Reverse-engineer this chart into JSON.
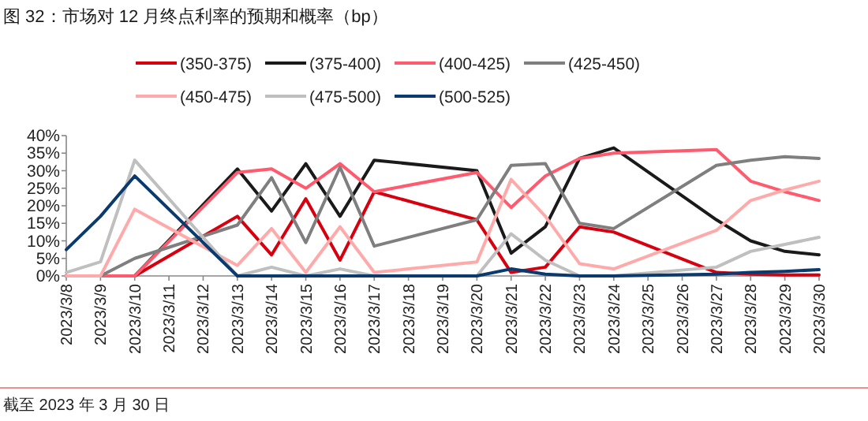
{
  "chart_data": {
    "type": "line",
    "title": "图 32：市场对 12 月终点利率的预期和概率（bp）",
    "annotations": [
      "截至 2023 年 3 月 30 日"
    ],
    "x": [
      "2023-03-08",
      "2023-03-09",
      "2023-03-10",
      "2023-03-13",
      "2023-03-14",
      "2023-03-15",
      "2023-03-16",
      "2023-03-17",
      "2023-03-20",
      "2023-03-21",
      "2023-03-22",
      "2023-03-23",
      "2023-03-24",
      "2023-03-27",
      "2023-03-28",
      "2023-03-29",
      "2023-03-30"
    ],
    "series": [
      {
        "name": "(350-375)",
        "color": "#d7000f",
        "values": [
          0,
          0,
          0,
          17,
          6,
          22,
          4.5,
          24,
          16,
          1,
          2.5,
          14,
          12.5,
          1,
          0.5,
          0.3,
          0.3
        ]
      },
      {
        "name": "(375-400)",
        "color": "#1a1a1a",
        "values": [
          0,
          0,
          0,
          30.5,
          18.5,
          32,
          17,
          33,
          30,
          6.5,
          14,
          33.5,
          36.5,
          16,
          10,
          7,
          6
        ]
      },
      {
        "name": "(400-425)",
        "color": "#ff5a6e",
        "values": [
          0,
          0,
          0,
          29.5,
          30.5,
          25,
          32,
          24,
          29.5,
          19.5,
          28.5,
          33.5,
          35,
          36,
          27,
          24,
          21.5
        ]
      },
      {
        "name": "(425-450)",
        "color": "#7f7f7f",
        "values": [
          0,
          0,
          5,
          14.5,
          28,
          9.5,
          31,
          8.5,
          16,
          31.5,
          32,
          15,
          13.5,
          31.5,
          33,
          34,
          33.5
        ]
      },
      {
        "name": "(450-475)",
        "color": "#ffaaaa",
        "values": [
          0,
          0,
          19,
          3,
          13.5,
          1,
          14,
          1,
          4,
          27.5,
          17,
          3.5,
          2,
          13,
          21.5,
          24.5,
          27
        ]
      },
      {
        "name": "(475-500)",
        "color": "#bfbfbf",
        "values": [
          1,
          4,
          33,
          0,
          2.5,
          0,
          2,
          0,
          0,
          12,
          4.5,
          0,
          0,
          2.5,
          7,
          9,
          11
        ]
      },
      {
        "name": "(500-525)",
        "color": "#0b3a6e",
        "values": [
          7.5,
          17,
          28.5,
          0,
          0,
          0,
          0,
          0,
          0,
          2,
          0.5,
          0,
          0,
          0.5,
          1,
          1.3,
          1.8
        ]
      }
    ],
    "xlim": [
      "2023-03-08",
      "2023-03-30"
    ],
    "xticks": [
      {
        "value": "2023-03-08",
        "label": "2023/3/8"
      },
      {
        "value": "2023-03-09",
        "label": "2023/3/9"
      },
      {
        "value": "2023-03-10",
        "label": "2023/3/10"
      },
      {
        "value": "2023-03-11",
        "label": "2023/3/11"
      },
      {
        "value": "2023-03-12",
        "label": "2023/3/12"
      },
      {
        "value": "2023-03-13",
        "label": "2023/3/13"
      },
      {
        "value": "2023-03-14",
        "label": "2023/3/14"
      },
      {
        "value": "2023-03-15",
        "label": "2023/3/15"
      },
      {
        "value": "2023-03-16",
        "label": "2023/3/16"
      },
      {
        "value": "2023-03-17",
        "label": "2023/3/17"
      },
      {
        "value": "2023-03-18",
        "label": "2023/3/18"
      },
      {
        "value": "2023-03-19",
        "label": "2023/3/19"
      },
      {
        "value": "2023-03-20",
        "label": "2023/3/20"
      },
      {
        "value": "2023-03-21",
        "label": "2023/3/21"
      },
      {
        "value": "2023-03-22",
        "label": "2023/3/22"
      },
      {
        "value": "2023-03-23",
        "label": "2023/3/23"
      },
      {
        "value": "2023-03-24",
        "label": "2023/3/24"
      },
      {
        "value": "2023-03-25",
        "label": "2023/3/25"
      },
      {
        "value": "2023-03-26",
        "label": "2023/3/26"
      },
      {
        "value": "2023-03-27",
        "label": "2023/3/27"
      },
      {
        "value": "2023-03-28",
        "label": "2023/3/28"
      },
      {
        "value": "2023-03-29",
        "label": "2023/3/29"
      },
      {
        "value": "2023-03-30",
        "label": "2023/3/30"
      }
    ],
    "ylim": [
      0,
      40
    ],
    "yticks": [
      {
        "value": 0,
        "label": "0%"
      },
      {
        "value": 5,
        "label": "5%"
      },
      {
        "value": 10,
        "label": "10%"
      },
      {
        "value": 15,
        "label": "15%"
      },
      {
        "value": 20,
        "label": "20%"
      },
      {
        "value": 25,
        "label": "25%"
      },
      {
        "value": 30,
        "label": "30%"
      },
      {
        "value": 35,
        "label": "35%"
      },
      {
        "value": 40,
        "label": "40%"
      }
    ],
    "grid": false,
    "legend": "top",
    "marker": "none",
    "line_style": "solid"
  }
}
